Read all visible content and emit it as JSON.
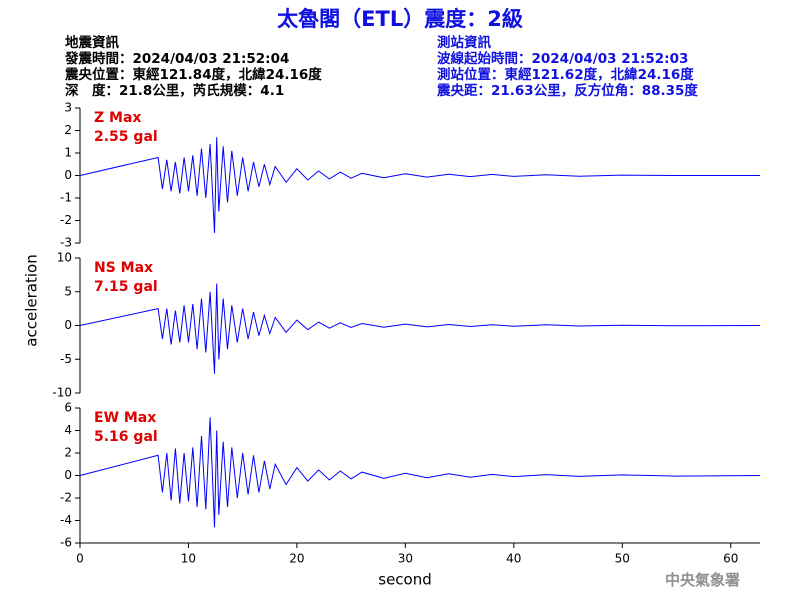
{
  "header": {
    "title": "太魯閣（ETL）震度：2級",
    "left": [
      "地震資訊",
      "發震時間：2024/04/03 21:52:04",
      "震央位置：東經121.84度，北緯24.16度",
      "深　度：21.8公里，芮氏規模：4.1"
    ],
    "right": [
      "測站資訊",
      "波線起始時間：2024/04/03 21:52:03",
      "測站位置：東經121.62度，北緯24.16度",
      "震央距：21.63公里，反方位角：88.35度"
    ],
    "footer": "中央氣象署"
  },
  "chart_data": [
    {
      "type": "line",
      "color": "#0000ff",
      "annotations": [
        "Z Max",
        "2.55 gal"
      ],
      "annotation_color": "#e00000",
      "xlim": [
        0,
        62.7
      ],
      "ylim": [
        -3,
        3
      ],
      "yticks": [
        -3,
        -2,
        -1,
        0,
        1,
        2,
        3
      ],
      "x": [
        0,
        7.2,
        7.6,
        8.0,
        8.4,
        8.8,
        9.2,
        9.6,
        10,
        10.4,
        10.8,
        11.2,
        11.6,
        12,
        12.4,
        12.6,
        12.8,
        13.2,
        13.6,
        14,
        14.5,
        15,
        15.5,
        16,
        16.5,
        17,
        17.5,
        18,
        19,
        20,
        21,
        22,
        23,
        24,
        25,
        26,
        28,
        30,
        32,
        34,
        36,
        38,
        40,
        43,
        46,
        50,
        55,
        62.7
      ],
      "values": [
        0,
        0.8,
        -0.6,
        0.7,
        -0.7,
        0.6,
        -0.8,
        0.8,
        -0.7,
        0.9,
        -0.9,
        1.2,
        -1.0,
        1.4,
        -2.55,
        1.7,
        -1.6,
        1.3,
        -1.2,
        1.1,
        -0.9,
        0.8,
        -0.7,
        0.6,
        -0.5,
        0.5,
        -0.4,
        0.4,
        -0.3,
        0.3,
        -0.2,
        0.2,
        -0.15,
        0.15,
        -0.12,
        0.1,
        -0.1,
        0.08,
        -0.07,
        0.06,
        -0.05,
        0.05,
        -0.04,
        0.03,
        -0.03,
        0.02,
        0,
        0
      ]
    },
    {
      "type": "line",
      "color": "#0000ff",
      "annotations": [
        "NS Max",
        "7.15 gal"
      ],
      "annotation_color": "#e00000",
      "ylabel": "acceleration",
      "xlim": [
        0,
        62.7
      ],
      "ylim": [
        -10,
        10
      ],
      "yticks": [
        -10,
        -5,
        0,
        5,
        10
      ],
      "x": [
        0,
        7.2,
        7.6,
        8.0,
        8.4,
        8.8,
        9.2,
        9.6,
        10,
        10.4,
        10.8,
        11.2,
        11.6,
        12,
        12.4,
        12.6,
        12.8,
        13.2,
        13.6,
        14,
        14.5,
        15,
        15.5,
        16,
        16.5,
        17,
        17.5,
        18,
        19,
        20,
        21,
        22,
        23,
        24,
        25,
        26,
        28,
        30,
        32,
        34,
        36,
        38,
        40,
        43,
        46,
        50,
        55,
        62.7
      ],
      "values": [
        0,
        2.5,
        -2,
        2.5,
        -2.8,
        2.2,
        -2.5,
        3,
        -2.5,
        3.2,
        -3.5,
        4,
        -4,
        5,
        -7.15,
        6.2,
        -5,
        4,
        -3.5,
        3,
        -2.5,
        2.5,
        -2,
        2,
        -1.5,
        1.5,
        -1.2,
        1.2,
        -1,
        0.8,
        -0.6,
        0.5,
        -0.4,
        0.4,
        -0.3,
        0.3,
        -0.25,
        0.2,
        -0.2,
        0.15,
        -0.15,
        0.1,
        -0.1,
        0.1,
        -0.08,
        0.05,
        -0.05,
        0
      ]
    },
    {
      "type": "line",
      "color": "#0000ff",
      "annotations": [
        "EW Max",
        "5.16 gal"
      ],
      "annotation_color": "#e00000",
      "xlabel": "second",
      "xlim": [
        0,
        62.7
      ],
      "ylim": [
        -6,
        6
      ],
      "yticks": [
        -6,
        -4,
        -2,
        0,
        2,
        4,
        6
      ],
      "xticks": [
        0,
        10,
        20,
        30,
        40,
        50,
        60
      ],
      "x": [
        0,
        7.2,
        7.6,
        8.0,
        8.4,
        8.8,
        9.2,
        9.6,
        10,
        10.4,
        10.8,
        11.2,
        11.6,
        12,
        12.4,
        12.6,
        12.8,
        13.2,
        13.6,
        14,
        14.5,
        15,
        15.5,
        16,
        16.5,
        17,
        17.5,
        18,
        19,
        20,
        21,
        22,
        23,
        24,
        25,
        26,
        28,
        30,
        32,
        34,
        36,
        38,
        40,
        43,
        46,
        50,
        55,
        62.7
      ],
      "values": [
        0,
        1.8,
        -1.5,
        2,
        -2.2,
        2.4,
        -2.5,
        2,
        -2.3,
        2.5,
        -2.8,
        3.5,
        -3,
        5.16,
        -4.6,
        4,
        -3.5,
        3,
        -2.8,
        2.5,
        -2,
        2,
        -1.7,
        1.8,
        -1.5,
        1.3,
        -1.2,
        1,
        -0.8,
        0.7,
        -0.5,
        0.5,
        -0.4,
        0.4,
        -0.3,
        0.3,
        -0.25,
        0.2,
        -0.2,
        0.15,
        -0.15,
        0.1,
        -0.1,
        0.08,
        -0.08,
        0.05,
        -0.05,
        0
      ]
    }
  ]
}
